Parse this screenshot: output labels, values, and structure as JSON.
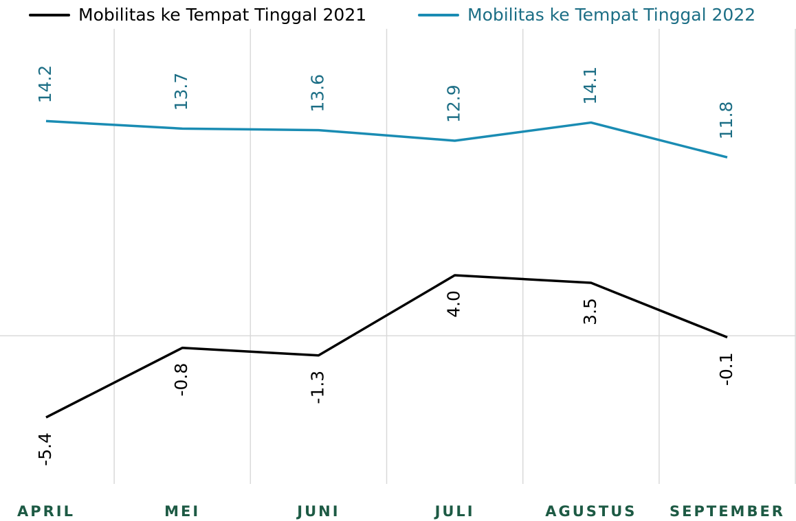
{
  "chart_data": {
    "type": "line",
    "categories": [
      "APRIL",
      "MEI",
      "JUNI",
      "JULI",
      "AGUSTUS",
      "SEPTEMBER"
    ],
    "series": [
      {
        "name": "Mobilitas ke Tempat Tinggal 2021",
        "color": "#000000",
        "label_color": "#000000",
        "values": [
          -5.4,
          -0.8,
          -1.3,
          4.0,
          3.5,
          -0.1
        ],
        "value_labels": [
          "-5.4",
          "-0.8",
          "-1.3",
          "4.0",
          "3.5",
          "-0.1"
        ]
      },
      {
        "name": "Mobilitas ke Tempat Tinggal 2022",
        "color": "#1a8cb3",
        "label_color": "#1c6e85",
        "values": [
          14.2,
          13.7,
          13.6,
          12.9,
          14.1,
          11.8
        ]
      }
    ],
    "ylim": [
      -9.8,
      20.3
    ]
  }
}
